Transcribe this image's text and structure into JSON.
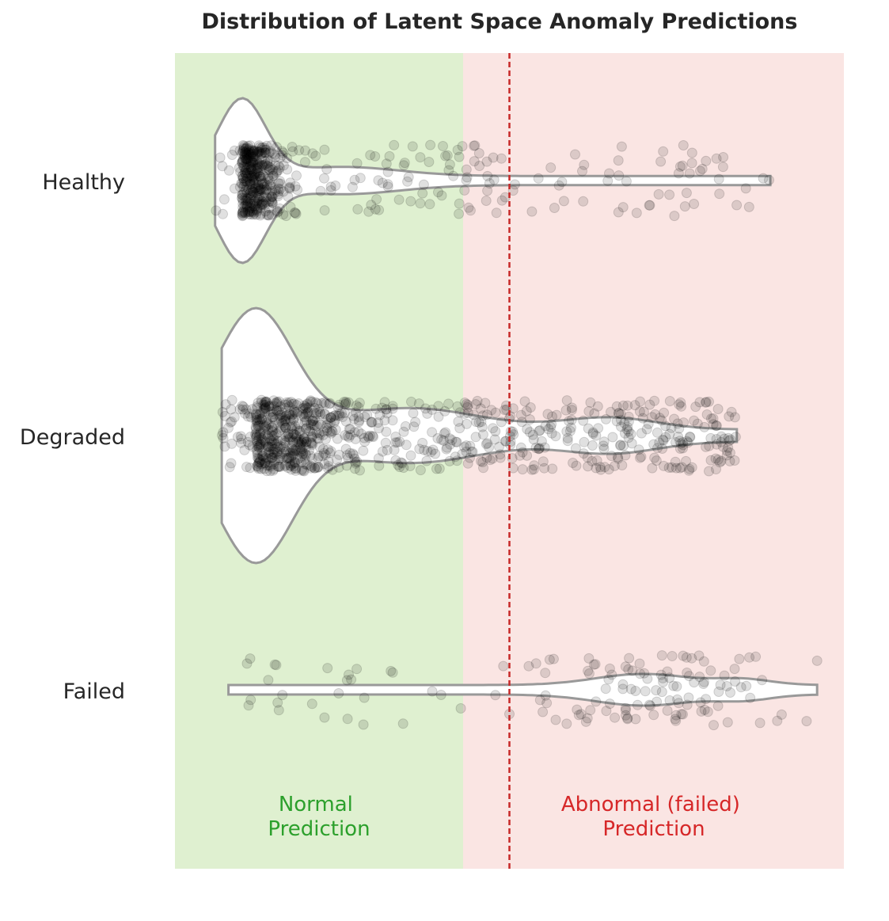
{
  "chart_data": {
    "type": "violin",
    "title": "Distribution of Latent Space Anomaly Predictions",
    "xlabel": "",
    "ylabel": "",
    "categories": [
      "Healthy",
      "Degraded",
      "Failed"
    ],
    "x_range": [
      0,
      1
    ],
    "threshold": 0.5,
    "threshold_color": "#c62828",
    "grid": false,
    "regions": [
      {
        "label_line1": "Normal",
        "label_line2": "Prediction",
        "side": "below-threshold",
        "background": "#dff0d0",
        "text_color": "#2ca02c"
      },
      {
        "label_line1": "Abnormal (failed)",
        "label_line2": "Prediction",
        "side": "above-threshold",
        "background": "#fae5e3",
        "text_color": "#d62728"
      }
    ],
    "series": [
      {
        "category": "Healthy",
        "n_points": 520,
        "violin_extent": [
          0.06,
          0.89
        ],
        "mode": 0.1,
        "points_range": [
          0.06,
          0.89
        ],
        "fraction_above_threshold": 0.1
      },
      {
        "category": "Degraded",
        "n_points": 900,
        "violin_extent": [
          0.07,
          0.84
        ],
        "mode": 0.12,
        "points_range": [
          0.07,
          0.84
        ],
        "fraction_above_threshold": 0.25
      },
      {
        "category": "Failed",
        "n_points": 145,
        "violin_extent": [
          0.08,
          0.96
        ],
        "mode": 0.75,
        "points_range": [
          0.08,
          0.96
        ],
        "fraction_above_threshold": 0.8
      }
    ],
    "colors": {
      "violin_fill": "#ffffff",
      "violin_edge": "#999999",
      "points": "#000000"
    }
  }
}
